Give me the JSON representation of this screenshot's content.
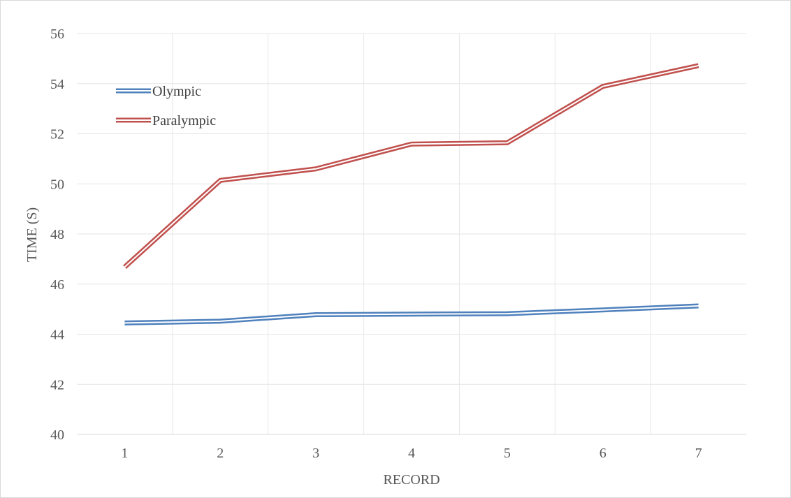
{
  "chart_data": {
    "type": "line",
    "title": "",
    "xlabel": "RECORD",
    "ylabel": "TIME (S)",
    "categories": [
      "1",
      "2",
      "3",
      "4",
      "5",
      "6",
      "7"
    ],
    "ylim": [
      40,
      56
    ],
    "y_ticks": [
      "40",
      "42",
      "44",
      "46",
      "48",
      "50",
      "52",
      "54",
      "56"
    ],
    "grid": true,
    "legend_position": "top-left",
    "line_style": "double",
    "series": [
      {
        "name": "Olympic",
        "color": "#4f81bd",
        "values": [
          44.45,
          44.52,
          44.78,
          44.8,
          44.82,
          44.97,
          45.13
        ]
      },
      {
        "name": "Paralympic",
        "color": "#c0504d",
        "values": [
          46.68,
          50.14,
          50.6,
          51.59,
          51.64,
          53.89,
          54.72
        ]
      }
    ]
  }
}
